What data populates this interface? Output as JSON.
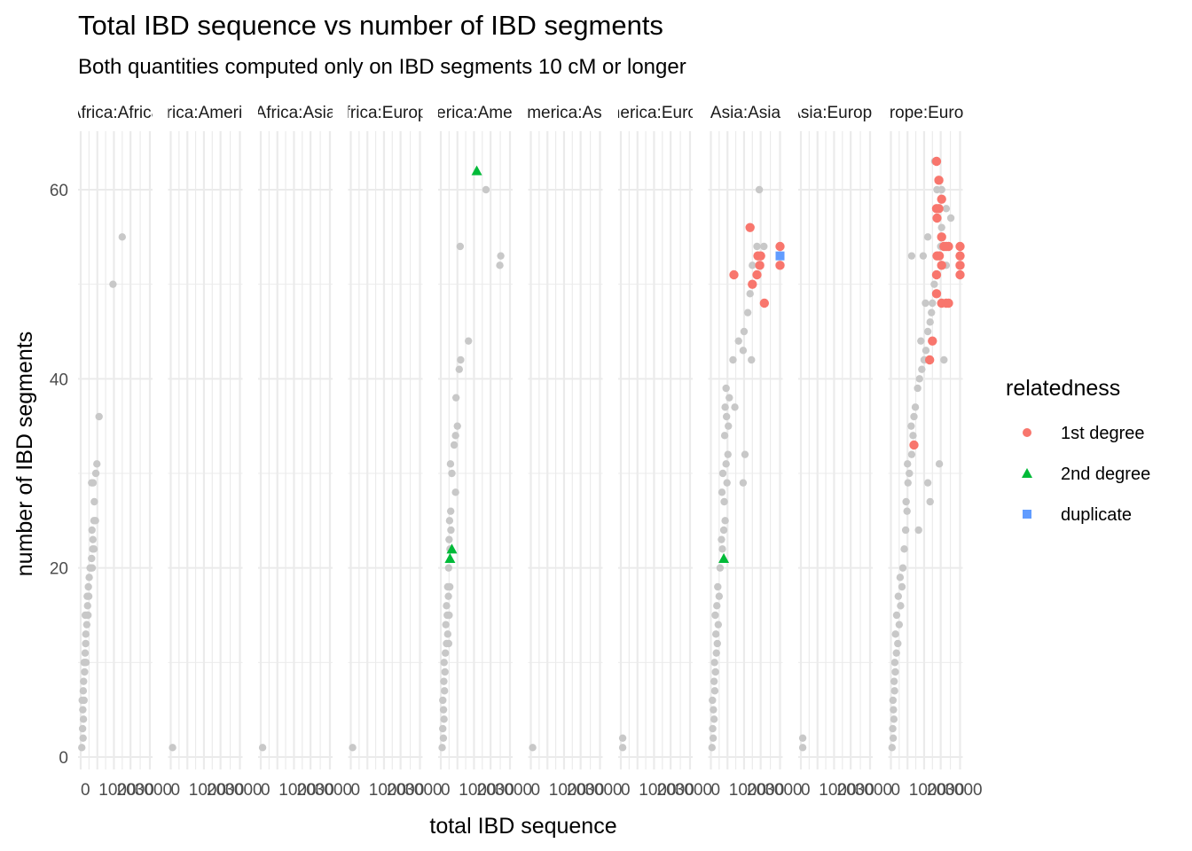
{
  "chart_data": {
    "type": "scatter",
    "title": "Total IBD sequence vs number of IBD segments",
    "subtitle": "Both quantities computed only on IBD segments 10 cM or longer",
    "xlabel": "total IBD sequence",
    "ylabel": "number of IBD segments",
    "xlim": [
      0,
      4000
    ],
    "ylim": [
      0,
      64
    ],
    "x_ticks": [
      0,
      1000,
      2000,
      3000
    ],
    "x_tick_labels": [
      "0",
      "1000",
      "2000",
      "3000"
    ],
    "y_ticks": [
      0,
      20,
      40,
      60
    ],
    "y_tick_labels": [
      "0",
      "20",
      "40",
      "60"
    ],
    "grid": true,
    "legend": {
      "title": "relatedness",
      "position": "right",
      "entries": [
        {
          "label": "1st degree",
          "color": "#F8766D",
          "shape": "circle"
        },
        {
          "label": "2nd degree",
          "color": "#00BA38",
          "shape": "triangle"
        },
        {
          "label": "duplicate",
          "color": "#619CFF",
          "shape": "square"
        }
      ]
    },
    "unrelated_color": "#c8c8c8",
    "panels": [
      {
        "label": "Africa:Africa",
        "background": [
          [
            24,
            1
          ],
          [
            52,
            2
          ],
          [
            41,
            3
          ],
          [
            59,
            4
          ],
          [
            46,
            5
          ],
          [
            33,
            6
          ],
          [
            72,
            6
          ],
          [
            55,
            7
          ],
          [
            63,
            8
          ],
          [
            84,
            9
          ],
          [
            74,
            10
          ],
          [
            89,
            10
          ],
          [
            115,
            10
          ],
          [
            96,
            11
          ],
          [
            108,
            12
          ],
          [
            111,
            13
          ],
          [
            132,
            14
          ],
          [
            100,
            15
          ],
          [
            141,
            15
          ],
          [
            158,
            15
          ],
          [
            149,
            16
          ],
          [
            175,
            17
          ],
          [
            141,
            17
          ],
          [
            166,
            18
          ],
          [
            184,
            19
          ],
          [
            204,
            20
          ],
          [
            226,
            20
          ],
          [
            250,
            20
          ],
          [
            236,
            21
          ],
          [
            258,
            22
          ],
          [
            288,
            22
          ],
          [
            264,
            23
          ],
          [
            244,
            24
          ],
          [
            287,
            25
          ],
          [
            320,
            25
          ],
          [
            295,
            27
          ],
          [
            236,
            29
          ],
          [
            269,
            29
          ],
          [
            328,
            30
          ],
          [
            351,
            31
          ],
          [
            398,
            36
          ],
          [
            700,
            50
          ],
          [
            900,
            55
          ]
        ],
        "first": [],
        "second": [],
        "dup": []
      },
      {
        "label": "Africa:America",
        "background": [
          [
            40,
            1
          ]
        ],
        "first": [],
        "second": [],
        "dup": []
      },
      {
        "label": "Africa:Asia",
        "background": [
          [
            40,
            1
          ]
        ],
        "first": [],
        "second": [],
        "dup": []
      },
      {
        "label": "Africa:Europe",
        "background": [
          [
            40,
            1
          ]
        ],
        "first": [],
        "second": [],
        "dup": []
      },
      {
        "label": "America:America",
        "background": [
          [
            30,
            1
          ],
          [
            56,
            2
          ],
          [
            43,
            3
          ],
          [
            70,
            4
          ],
          [
            59,
            5
          ],
          [
            44,
            6
          ],
          [
            80,
            7
          ],
          [
            66,
            8
          ],
          [
            90,
            9
          ],
          [
            72,
            10
          ],
          [
            100,
            11
          ],
          [
            125,
            12
          ],
          [
            170,
            12
          ],
          [
            150,
            13
          ],
          [
            110,
            14
          ],
          [
            140,
            15
          ],
          [
            180,
            15
          ],
          [
            125,
            16
          ],
          [
            165,
            17
          ],
          [
            150,
            18
          ],
          [
            195,
            18
          ],
          [
            170,
            20
          ],
          [
            200,
            22
          ],
          [
            180,
            23
          ],
          [
            220,
            24
          ],
          [
            190,
            25
          ],
          [
            215,
            26
          ],
          [
            320,
            28
          ],
          [
            240,
            30
          ],
          [
            210,
            31
          ],
          [
            290,
            33
          ],
          [
            320,
            34
          ],
          [
            360,
            35
          ],
          [
            330,
            38
          ],
          [
            400,
            41
          ],
          [
            430,
            42
          ],
          [
            600,
            44
          ],
          [
            420,
            54
          ],
          [
            980,
            60
          ],
          [
            1280,
            52
          ],
          [
            1300,
            53
          ]
        ],
        "first": [],
        "second": [
          [
            200,
            21
          ],
          [
            240,
            22
          ],
          [
            780,
            62
          ]
        ],
        "dup": []
      },
      {
        "label": "America:Asia",
        "background": [
          [
            40,
            1
          ]
        ],
        "first": [],
        "second": [],
        "dup": []
      },
      {
        "label": "America:Europe",
        "background": [
          [
            40,
            1
          ],
          [
            40,
            2
          ]
        ],
        "first": [],
        "second": [],
        "dup": []
      },
      {
        "label": "Asia:Asia",
        "background": [
          [
            25,
            1
          ],
          [
            50,
            2
          ],
          [
            40,
            3
          ],
          [
            70,
            4
          ],
          [
            55,
            5
          ],
          [
            35,
            6
          ],
          [
            85,
            7
          ],
          [
            70,
            8
          ],
          [
            100,
            9
          ],
          [
            80,
            10
          ],
          [
            120,
            11
          ],
          [
            140,
            12
          ],
          [
            110,
            13
          ],
          [
            160,
            14
          ],
          [
            95,
            15
          ],
          [
            130,
            16
          ],
          [
            180,
            17
          ],
          [
            150,
            18
          ],
          [
            200,
            20
          ],
          [
            250,
            22
          ],
          [
            230,
            23
          ],
          [
            280,
            24
          ],
          [
            310,
            25
          ],
          [
            290,
            27
          ],
          [
            240,
            28
          ],
          [
            350,
            29
          ],
          [
            260,
            30
          ],
          [
            330,
            31
          ],
          [
            370,
            32
          ],
          [
            300,
            34
          ],
          [
            380,
            35
          ],
          [
            340,
            36
          ],
          [
            310,
            37
          ],
          [
            400,
            38
          ],
          [
            330,
            39
          ],
          [
            480,
            42
          ],
          [
            520,
            37
          ],
          [
            600,
            44
          ],
          [
            720,
            45
          ],
          [
            800,
            47
          ],
          [
            850,
            49
          ],
          [
            700,
            43
          ],
          [
            900,
            52
          ],
          [
            1000,
            54
          ],
          [
            880,
            42
          ],
          [
            740,
            32
          ],
          [
            700,
            29
          ],
          [
            1050,
            60
          ],
          [
            1150,
            54
          ]
        ],
        "first": [
          [
            500,
            51
          ],
          [
            850,
            56
          ],
          [
            900,
            50
          ],
          [
            1020,
            53
          ],
          [
            1080,
            53
          ],
          [
            1000,
            51
          ],
          [
            1060,
            52
          ],
          [
            1160,
            48
          ],
          [
            1500,
            54
          ],
          [
            1500,
            52
          ]
        ],
        "second": [
          [
            280,
            21
          ]
        ],
        "dup": [
          [
            1500,
            53
          ]
        ]
      },
      {
        "label": "Asia:Europe",
        "background": [
          [
            40,
            1
          ],
          [
            40,
            2
          ]
        ],
        "first": [],
        "second": [],
        "dup": []
      },
      {
        "label": "Europe:Europe",
        "background": [
          [
            25,
            1
          ],
          [
            50,
            2
          ],
          [
            40,
            3
          ],
          [
            65,
            4
          ],
          [
            55,
            5
          ],
          [
            45,
            6
          ],
          [
            80,
            7
          ],
          [
            70,
            8
          ],
          [
            95,
            9
          ],
          [
            85,
            10
          ],
          [
            120,
            11
          ],
          [
            150,
            12
          ],
          [
            100,
            13
          ],
          [
            180,
            14
          ],
          [
            125,
            15
          ],
          [
            210,
            16
          ],
          [
            160,
            17
          ],
          [
            240,
            18
          ],
          [
            200,
            19
          ],
          [
            260,
            20
          ],
          [
            290,
            22
          ],
          [
            320,
            24
          ],
          [
            350,
            26
          ],
          [
            330,
            27
          ],
          [
            370,
            29
          ],
          [
            400,
            30
          ],
          [
            360,
            31
          ],
          [
            450,
            32
          ],
          [
            480,
            34
          ],
          [
            440,
            35
          ],
          [
            500,
            36
          ],
          [
            530,
            37
          ],
          [
            580,
            39
          ],
          [
            620,
            40
          ],
          [
            670,
            41
          ],
          [
            720,
            42
          ],
          [
            760,
            43
          ],
          [
            800,
            45
          ],
          [
            850,
            46
          ],
          [
            880,
            47
          ],
          [
            900,
            48
          ],
          [
            940,
            50
          ],
          [
            980,
            51
          ],
          [
            1020,
            53
          ],
          [
            1080,
            54
          ],
          [
            1100,
            56
          ],
          [
            1200,
            58
          ],
          [
            800,
            55
          ],
          [
            700,
            53
          ],
          [
            750,
            48
          ],
          [
            650,
            44
          ],
          [
            600,
            24
          ],
          [
            450,
            53
          ],
          [
            1000,
            60
          ],
          [
            950,
            63
          ],
          [
            1100,
            60
          ],
          [
            1300,
            57
          ],
          [
            1200,
            52
          ],
          [
            1150,
            42
          ],
          [
            1050,
            31
          ],
          [
            800,
            29
          ],
          [
            850,
            27
          ],
          [
            1250,
            48
          ]
        ],
        "first": [
          [
            500,
            33
          ],
          [
            840,
            42
          ],
          [
            900,
            44
          ],
          [
            990,
            63
          ],
          [
            1040,
            61
          ],
          [
            1100,
            59
          ],
          [
            990,
            58
          ],
          [
            1040,
            58
          ],
          [
            1000,
            57
          ],
          [
            1100,
            55
          ],
          [
            1200,
            54
          ],
          [
            1150,
            54
          ],
          [
            1250,
            54
          ],
          [
            1000,
            53
          ],
          [
            1050,
            53
          ],
          [
            1100,
            52
          ],
          [
            990,
            51
          ],
          [
            990,
            49
          ],
          [
            1100,
            48
          ],
          [
            1200,
            48
          ],
          [
            1250,
            48
          ],
          [
            1500,
            54
          ],
          [
            1500,
            53
          ],
          [
            1500,
            52
          ],
          [
            1500,
            51
          ]
        ],
        "second": [],
        "dup": []
      }
    ]
  }
}
